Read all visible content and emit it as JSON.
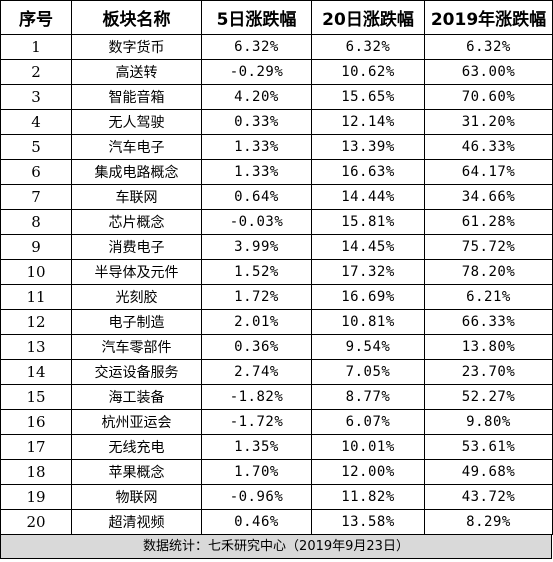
{
  "table": {
    "headers": [
      "序号",
      "板块名称",
      "5日涨跌幅",
      "20日涨跌幅",
      "2019年涨跌幅"
    ],
    "rows": [
      [
        "1",
        "数字货币",
        "6.32%",
        "6.32%",
        "6.32%"
      ],
      [
        "2",
        "高送转",
        "-0.29%",
        "10.62%",
        "63.00%"
      ],
      [
        "3",
        "智能音箱",
        "4.20%",
        "15.65%",
        "70.60%"
      ],
      [
        "4",
        "无人驾驶",
        "0.33%",
        "12.14%",
        "31.20%"
      ],
      [
        "5",
        "汽车电子",
        "1.33%",
        "13.39%",
        "46.33%"
      ],
      [
        "6",
        "集成电路概念",
        "1.33%",
        "16.63%",
        "64.17%"
      ],
      [
        "7",
        "车联网",
        "0.64%",
        "14.44%",
        "34.66%"
      ],
      [
        "8",
        "芯片概念",
        "-0.03%",
        "15.81%",
        "61.28%"
      ],
      [
        "9",
        "消费电子",
        "3.99%",
        "14.45%",
        "75.72%"
      ],
      [
        "10",
        "半导体及元件",
        "1.52%",
        "17.32%",
        "78.20%"
      ],
      [
        "11",
        "光刻胶",
        "1.72%",
        "16.69%",
        "6.21%"
      ],
      [
        "12",
        "电子制造",
        "2.01%",
        "10.81%",
        "66.33%"
      ],
      [
        "13",
        "汽车零部件",
        "0.36%",
        "9.54%",
        "13.80%"
      ],
      [
        "14",
        "交运设备服务",
        "2.74%",
        "7.05%",
        "23.70%"
      ],
      [
        "15",
        "海工装备",
        "-1.82%",
        "8.77%",
        "52.27%"
      ],
      [
        "16",
        "杭州亚运会",
        "-1.72%",
        "6.07%",
        "9.80%"
      ],
      [
        "17",
        "无线充电",
        "1.35%",
        "10.01%",
        "53.61%"
      ],
      [
        "18",
        "苹果概念",
        "1.70%",
        "12.00%",
        "49.68%"
      ],
      [
        "19",
        "物联网",
        "-0.96%",
        "11.82%",
        "43.72%"
      ],
      [
        "20",
        "超清视频",
        "0.46%",
        "13.58%",
        "8.29%"
      ]
    ]
  },
  "footer": {
    "text": "数据统计：七禾研究中心（2019年9月23日）"
  },
  "colors": {
    "border": "#000000",
    "footer_background": "#d9d9d9",
    "background": "#ffffff"
  }
}
